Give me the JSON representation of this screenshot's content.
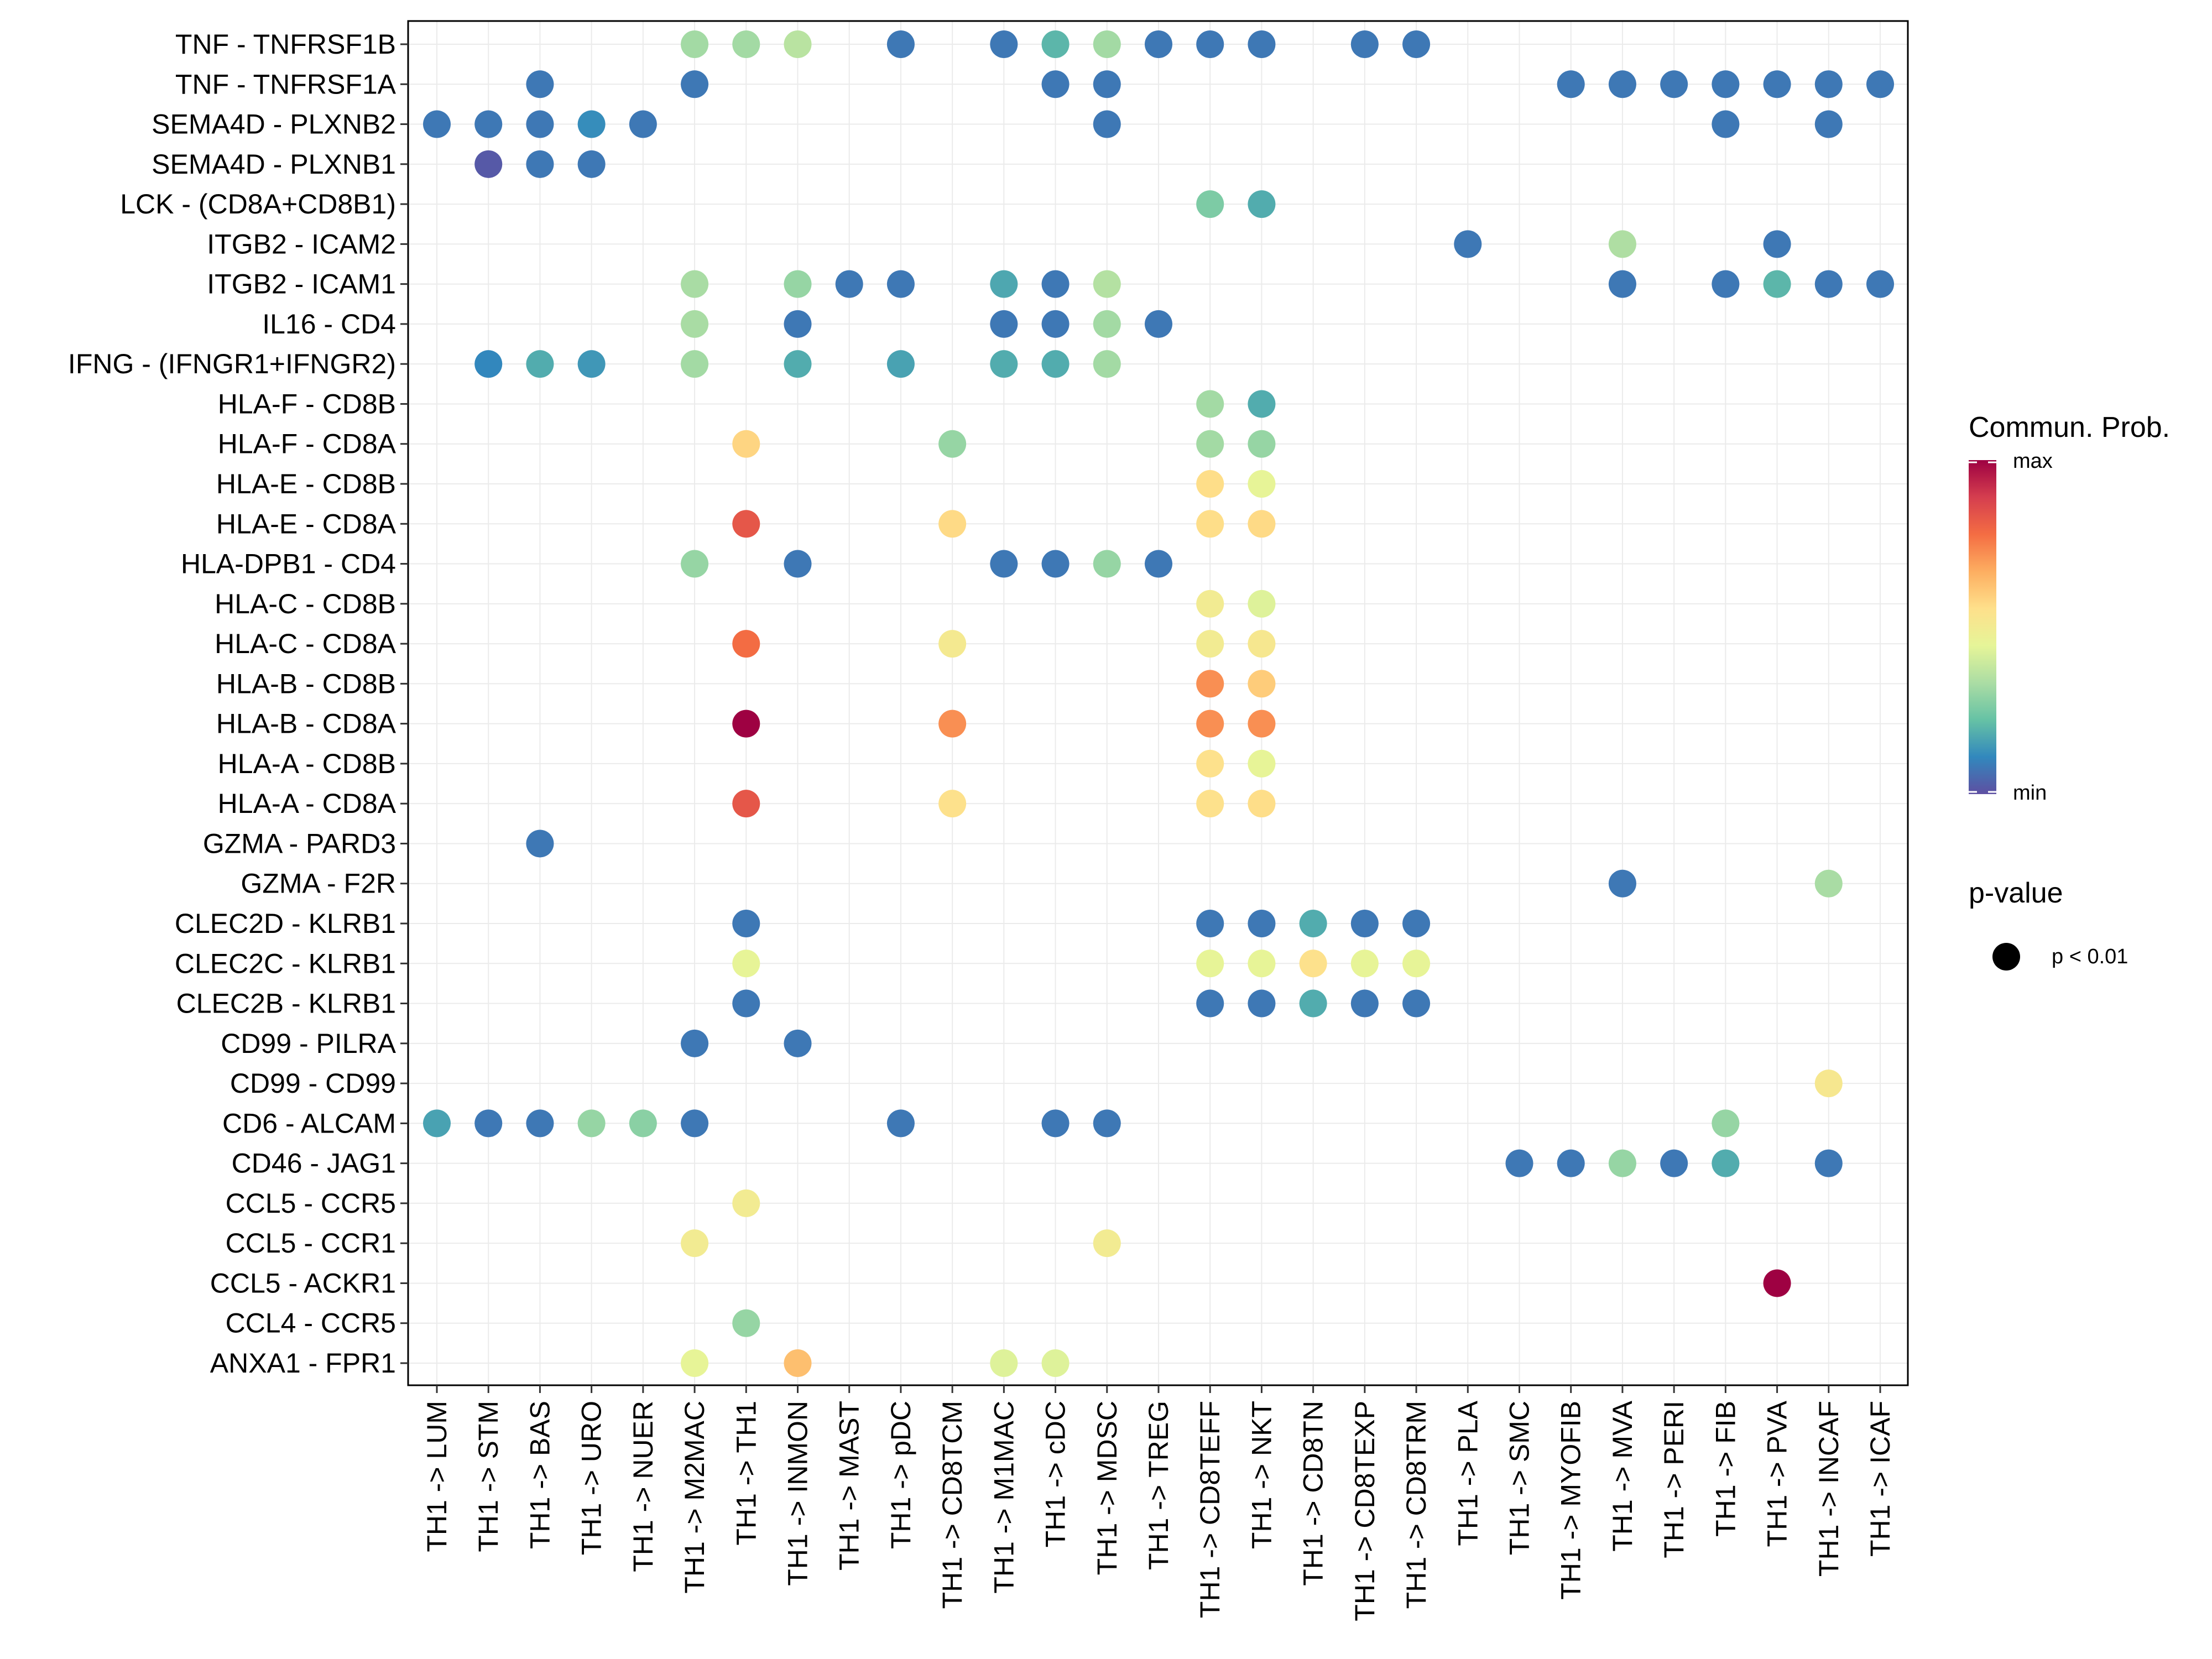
{
  "chart_data": {
    "type": "scatter",
    "title": "",
    "xlabel": "",
    "ylabel": "",
    "x_categories": [
      "TH1 -> LUM",
      "TH1 -> STM",
      "TH1 -> BAS",
      "TH1 -> URO",
      "TH1 -> NUER",
      "TH1 -> M2MAC",
      "TH1 -> TH1",
      "TH1 -> INMON",
      "TH1 -> MAST",
      "TH1 -> pDC",
      "TH1 -> CD8TCM",
      "TH1 -> M1MAC",
      "TH1 -> cDC",
      "TH1 -> MDSC",
      "TH1 -> TREG",
      "TH1 -> CD8TEFF",
      "TH1 -> NKT",
      "TH1 -> CD8TN",
      "TH1 -> CD8TEXP",
      "TH1 -> CD8TRM",
      "TH1 -> PLA",
      "TH1 -> SMC",
      "TH1 -> MYOFIB",
      "TH1 -> MVA",
      "TH1 -> PERI",
      "TH1 -> FIB",
      "TH1 -> PVA",
      "TH1 -> INCAF",
      "TH1 -> ICAF"
    ],
    "y_categories": [
      "TNF - TNFRSF1B",
      "TNF - TNFRSF1A",
      "SEMA4D - PLXNB2",
      "SEMA4D - PLXNB1",
      "LCK - (CD8A+CD8B1)",
      "ITGB2 - ICAM2",
      "ITGB2 - ICAM1",
      "IL16 - CD4",
      "IFNG - (IFNGR1+IFNGR2)",
      "HLA-F - CD8B",
      "HLA-F - CD8A",
      "HLA-E - CD8B",
      "HLA-E - CD8A",
      "HLA-DPB1 - CD4",
      "HLA-C - CD8B",
      "HLA-C - CD8A",
      "HLA-B - CD8B",
      "HLA-B - CD8A",
      "HLA-A - CD8B",
      "HLA-A - CD8A",
      "GZMA - PARD3",
      "GZMA - F2R",
      "CLEC2D - KLRB1",
      "CLEC2C - KLRB1",
      "CLEC2B - KLRB1",
      "CD99 - PILRA",
      "CD99 - CD99",
      "CD6 - ALCAM",
      "CD46 - JAG1",
      "CCL5 - CCR5",
      "CCL5 - CCR1",
      "CCL5 - ACKR1",
      "CCL4 - CCR5",
      "ANXA1 - FPR1"
    ],
    "value_scale": "normalized communication probability, 0 = min, 1 = max",
    "points": [
      [
        "TNF - TNFRSF1B",
        "TH1 -> M2MAC",
        0.32
      ],
      [
        "TNF - TNFRSF1B",
        "TH1 -> TH1",
        0.32
      ],
      [
        "TNF - TNFRSF1B",
        "TH1 -> INMON",
        0.36
      ],
      [
        "TNF - TNFRSF1B",
        "TH1 -> pDC",
        0.08
      ],
      [
        "TNF - TNFRSF1B",
        "TH1 -> M1MAC",
        0.08
      ],
      [
        "TNF - TNFRSF1B",
        "TH1 -> cDC",
        0.2
      ],
      [
        "TNF - TNFRSF1B",
        "TH1 -> MDSC",
        0.32
      ],
      [
        "TNF - TNFRSF1B",
        "TH1 -> TREG",
        0.08
      ],
      [
        "TNF - TNFRSF1B",
        "TH1 -> CD8TEFF",
        0.08
      ],
      [
        "TNF - TNFRSF1B",
        "TH1 -> NKT",
        0.08
      ],
      [
        "TNF - TNFRSF1B",
        "TH1 -> CD8TEXP",
        0.08
      ],
      [
        "TNF - TNFRSF1B",
        "TH1 -> CD8TRM",
        0.08
      ],
      [
        "TNF - TNFRSF1A",
        "TH1 -> BAS",
        0.08
      ],
      [
        "TNF - TNFRSF1A",
        "TH1 -> M2MAC",
        0.08
      ],
      [
        "TNF - TNFRSF1A",
        "TH1 -> cDC",
        0.08
      ],
      [
        "TNF - TNFRSF1A",
        "TH1 -> MDSC",
        0.08
      ],
      [
        "TNF - TNFRSF1A",
        "TH1 -> MYOFIB",
        0.08
      ],
      [
        "TNF - TNFRSF1A",
        "TH1 -> MVA",
        0.08
      ],
      [
        "TNF - TNFRSF1A",
        "TH1 -> PERI",
        0.08
      ],
      [
        "TNF - TNFRSF1A",
        "TH1 -> FIB",
        0.08
      ],
      [
        "TNF - TNFRSF1A",
        "TH1 -> PVA",
        0.08
      ],
      [
        "TNF - TNFRSF1A",
        "TH1 -> INCAF",
        0.08
      ],
      [
        "TNF - TNFRSF1A",
        "TH1 -> ICAF",
        0.08
      ],
      [
        "SEMA4D - PLXNB2",
        "TH1 -> LUM",
        0.08
      ],
      [
        "SEMA4D - PLXNB2",
        "TH1 -> STM",
        0.08
      ],
      [
        "SEMA4D - PLXNB2",
        "TH1 -> BAS",
        0.08
      ],
      [
        "SEMA4D - PLXNB2",
        "TH1 -> URO",
        0.12
      ],
      [
        "SEMA4D - PLXNB2",
        "TH1 -> NUER",
        0.08
      ],
      [
        "SEMA4D - PLXNB2",
        "TH1 -> MDSC",
        0.08
      ],
      [
        "SEMA4D - PLXNB2",
        "TH1 -> FIB",
        0.08
      ],
      [
        "SEMA4D - PLXNB2",
        "TH1 -> INCAF",
        0.08
      ],
      [
        "SEMA4D - PLXNB1",
        "TH1 -> STM",
        0.02
      ],
      [
        "SEMA4D - PLXNB1",
        "TH1 -> BAS",
        0.08
      ],
      [
        "SEMA4D - PLXNB1",
        "TH1 -> URO",
        0.08
      ],
      [
        "LCK - (CD8A+CD8B1)",
        "TH1 -> CD8TEFF",
        0.26
      ],
      [
        "LCK - (CD8A+CD8B1)",
        "TH1 -> NKT",
        0.18
      ],
      [
        "ITGB2 - ICAM2",
        "TH1 -> PLA",
        0.08
      ],
      [
        "ITGB2 - ICAM2",
        "TH1 -> MVA",
        0.34
      ],
      [
        "ITGB2 - ICAM2",
        "TH1 -> PVA",
        0.08
      ],
      [
        "ITGB2 - ICAM1",
        "TH1 -> M2MAC",
        0.33
      ],
      [
        "ITGB2 - ICAM1",
        "TH1 -> INMON",
        0.3
      ],
      [
        "ITGB2 - ICAM1",
        "TH1 -> MAST",
        0.08
      ],
      [
        "ITGB2 - ICAM1",
        "TH1 -> pDC",
        0.08
      ],
      [
        "ITGB2 - ICAM1",
        "TH1 -> M1MAC",
        0.17
      ],
      [
        "ITGB2 - ICAM1",
        "TH1 -> cDC",
        0.08
      ],
      [
        "ITGB2 - ICAM1",
        "TH1 -> MDSC",
        0.35
      ],
      [
        "ITGB2 - ICAM1",
        "TH1 -> MVA",
        0.08
      ],
      [
        "ITGB2 - ICAM1",
        "TH1 -> FIB",
        0.08
      ],
      [
        "ITGB2 - ICAM1",
        "TH1 -> PVA",
        0.2
      ],
      [
        "ITGB2 - ICAM1",
        "TH1 -> INCAF",
        0.08
      ],
      [
        "ITGB2 - ICAM1",
        "TH1 -> ICAF",
        0.08
      ],
      [
        "IL16 - CD4",
        "TH1 -> M2MAC",
        0.33
      ],
      [
        "IL16 - CD4",
        "TH1 -> INMON",
        0.08
      ],
      [
        "IL16 - CD4",
        "TH1 -> M1MAC",
        0.08
      ],
      [
        "IL16 - CD4",
        "TH1 -> cDC",
        0.08
      ],
      [
        "IL16 - CD4",
        "TH1 -> MDSC",
        0.32
      ],
      [
        "IL16 - CD4",
        "TH1 -> TREG",
        0.08
      ],
      [
        "IFNG - (IFNGR1+IFNGR2)",
        "TH1 -> STM",
        0.11
      ],
      [
        "IFNG - (IFNGR1+IFNGR2)",
        "TH1 -> BAS",
        0.18
      ],
      [
        "IFNG - (IFNGR1+IFNGR2)",
        "TH1 -> URO",
        0.14
      ],
      [
        "IFNG - (IFNGR1+IFNGR2)",
        "TH1 -> M2MAC",
        0.32
      ],
      [
        "IFNG - (IFNGR1+IFNGR2)",
        "TH1 -> INMON",
        0.18
      ],
      [
        "IFNG - (IFNGR1+IFNGR2)",
        "TH1 -> pDC",
        0.16
      ],
      [
        "IFNG - (IFNGR1+IFNGR2)",
        "TH1 -> M1MAC",
        0.18
      ],
      [
        "IFNG - (IFNGR1+IFNGR2)",
        "TH1 -> cDC",
        0.18
      ],
      [
        "IFNG - (IFNGR1+IFNGR2)",
        "TH1 -> MDSC",
        0.32
      ],
      [
        "HLA-F - CD8B",
        "TH1 -> CD8TEFF",
        0.32
      ],
      [
        "HLA-F - CD8B",
        "TH1 -> NKT",
        0.18
      ],
      [
        "HLA-F - CD8A",
        "TH1 -> TH1",
        0.58
      ],
      [
        "HLA-F - CD8A",
        "TH1 -> CD8TCM",
        0.3
      ],
      [
        "HLA-F - CD8A",
        "TH1 -> CD8TEFF",
        0.32
      ],
      [
        "HLA-F - CD8A",
        "TH1 -> NKT",
        0.3
      ],
      [
        "HLA-E - CD8B",
        "TH1 -> CD8TEFF",
        0.56
      ],
      [
        "HLA-E - CD8B",
        "TH1 -> NKT",
        0.45
      ],
      [
        "HLA-E - CD8A",
        "TH1 -> TH1",
        0.83
      ],
      [
        "HLA-E - CD8A",
        "TH1 -> CD8TCM",
        0.57
      ],
      [
        "HLA-E - CD8A",
        "TH1 -> CD8TEFF",
        0.56
      ],
      [
        "HLA-E - CD8A",
        "TH1 -> NKT",
        0.57
      ],
      [
        "HLA-DPB1 - CD4",
        "TH1 -> M2MAC",
        0.3
      ],
      [
        "HLA-DPB1 - CD4",
        "TH1 -> INMON",
        0.08
      ],
      [
        "HLA-DPB1 - CD4",
        "TH1 -> M1MAC",
        0.08
      ],
      [
        "HLA-DPB1 - CD4",
        "TH1 -> cDC",
        0.08
      ],
      [
        "HLA-DPB1 - CD4",
        "TH1 -> MDSC",
        0.3
      ],
      [
        "HLA-DPB1 - CD4",
        "TH1 -> TREG",
        0.08
      ],
      [
        "HLA-C - CD8B",
        "TH1 -> CD8TEFF",
        0.5
      ],
      [
        "HLA-C - CD8B",
        "TH1 -> NKT",
        0.43
      ],
      [
        "HLA-C - CD8A",
        "TH1 -> TH1",
        0.78
      ],
      [
        "HLA-C - CD8A",
        "TH1 -> CD8TCM",
        0.51
      ],
      [
        "HLA-C - CD8A",
        "TH1 -> CD8TEFF",
        0.5
      ],
      [
        "HLA-C - CD8A",
        "TH1 -> NKT",
        0.52
      ],
      [
        "HLA-B - CD8B",
        "TH1 -> CD8TEFF",
        0.72
      ],
      [
        "HLA-B - CD8B",
        "TH1 -> NKT",
        0.6
      ],
      [
        "HLA-B - CD8A",
        "TH1 -> TH1",
        1.0
      ],
      [
        "HLA-B - CD8A",
        "TH1 -> CD8TCM",
        0.72
      ],
      [
        "HLA-B - CD8A",
        "TH1 -> CD8TEFF",
        0.72
      ],
      [
        "HLA-B - CD8A",
        "TH1 -> NKT",
        0.72
      ],
      [
        "HLA-A - CD8B",
        "TH1 -> CD8TEFF",
        0.55
      ],
      [
        "HLA-A - CD8B",
        "TH1 -> NKT",
        0.45
      ],
      [
        "HLA-A - CD8A",
        "TH1 -> TH1",
        0.83
      ],
      [
        "HLA-A - CD8A",
        "TH1 -> CD8TCM",
        0.55
      ],
      [
        "HLA-A - CD8A",
        "TH1 -> CD8TEFF",
        0.55
      ],
      [
        "HLA-A - CD8A",
        "TH1 -> NKT",
        0.56
      ],
      [
        "GZMA - PARD3",
        "TH1 -> BAS",
        0.08
      ],
      [
        "GZMA - F2R",
        "TH1 -> MVA",
        0.08
      ],
      [
        "GZMA - F2R",
        "TH1 -> INCAF",
        0.33
      ],
      [
        "CLEC2D - KLRB1",
        "TH1 -> TH1",
        0.08
      ],
      [
        "CLEC2D - KLRB1",
        "TH1 -> CD8TEFF",
        0.08
      ],
      [
        "CLEC2D - KLRB1",
        "TH1 -> NKT",
        0.08
      ],
      [
        "CLEC2D - KLRB1",
        "TH1 -> CD8TN",
        0.18
      ],
      [
        "CLEC2D - KLRB1",
        "TH1 -> CD8TEXP",
        0.08
      ],
      [
        "CLEC2D - KLRB1",
        "TH1 -> CD8TRM",
        0.08
      ],
      [
        "CLEC2C - KLRB1",
        "TH1 -> TH1",
        0.45
      ],
      [
        "CLEC2C - KLRB1",
        "TH1 -> CD8TEFF",
        0.45
      ],
      [
        "CLEC2C - KLRB1",
        "TH1 -> NKT",
        0.45
      ],
      [
        "CLEC2C - KLRB1",
        "TH1 -> CD8TN",
        0.55
      ],
      [
        "CLEC2C - KLRB1",
        "TH1 -> CD8TEXP",
        0.45
      ],
      [
        "CLEC2C - KLRB1",
        "TH1 -> CD8TRM",
        0.45
      ],
      [
        "CLEC2B - KLRB1",
        "TH1 -> TH1",
        0.08
      ],
      [
        "CLEC2B - KLRB1",
        "TH1 -> CD8TEFF",
        0.08
      ],
      [
        "CLEC2B - KLRB1",
        "TH1 -> NKT",
        0.08
      ],
      [
        "CLEC2B - KLRB1",
        "TH1 -> CD8TN",
        0.18
      ],
      [
        "CLEC2B - KLRB1",
        "TH1 -> CD8TEXP",
        0.08
      ],
      [
        "CLEC2B - KLRB1",
        "TH1 -> CD8TRM",
        0.08
      ],
      [
        "CD99 - PILRA",
        "TH1 -> M2MAC",
        0.08
      ],
      [
        "CD99 - PILRA",
        "TH1 -> INMON",
        0.08
      ],
      [
        "CD99 - CD99",
        "TH1 -> INCAF",
        0.52
      ],
      [
        "CD6 - ALCAM",
        "TH1 -> LUM",
        0.16
      ],
      [
        "CD6 - ALCAM",
        "TH1 -> STM",
        0.08
      ],
      [
        "CD6 - ALCAM",
        "TH1 -> BAS",
        0.08
      ],
      [
        "CD6 - ALCAM",
        "TH1 -> URO",
        0.3
      ],
      [
        "CD6 - ALCAM",
        "TH1 -> NUER",
        0.28
      ],
      [
        "CD6 - ALCAM",
        "TH1 -> M2MAC",
        0.08
      ],
      [
        "CD6 - ALCAM",
        "TH1 -> pDC",
        0.08
      ],
      [
        "CD6 - ALCAM",
        "TH1 -> cDC",
        0.08
      ],
      [
        "CD6 - ALCAM",
        "TH1 -> MDSC",
        0.08
      ],
      [
        "CD6 - ALCAM",
        "TH1 -> FIB",
        0.3
      ],
      [
        "CD46 - JAG1",
        "TH1 -> SMC",
        0.08
      ],
      [
        "CD46 - JAG1",
        "TH1 -> MYOFIB",
        0.08
      ],
      [
        "CD46 - JAG1",
        "TH1 -> MVA",
        0.3
      ],
      [
        "CD46 - JAG1",
        "TH1 -> PERI",
        0.08
      ],
      [
        "CD46 - JAG1",
        "TH1 -> FIB",
        0.18
      ],
      [
        "CD46 - JAG1",
        "TH1 -> INCAF",
        0.08
      ],
      [
        "CCL5 - CCR5",
        "TH1 -> TH1",
        0.5
      ],
      [
        "CCL5 - CCR1",
        "TH1 -> M2MAC",
        0.5
      ],
      [
        "CCL5 - CCR1",
        "TH1 -> MDSC",
        0.5
      ],
      [
        "CCL5 - ACKR1",
        "TH1 -> PVA",
        1.0
      ],
      [
        "CCL4 - CCR5",
        "TH1 -> TH1",
        0.3
      ],
      [
        "ANXA1 - FPR1",
        "TH1 -> M2MAC",
        0.45
      ],
      [
        "ANXA1 - FPR1",
        "TH1 -> INMON",
        0.63
      ],
      [
        "ANXA1 - FPR1",
        "TH1 -> M1MAC",
        0.43
      ],
      [
        "ANXA1 - FPR1",
        "TH1 -> cDC",
        0.43
      ]
    ],
    "legend": {
      "color_title": "Commun. Prob.",
      "color_max_label": "max",
      "color_min_label": "min",
      "size_title": "p-value",
      "size_entry_label": "p < 0.01"
    },
    "palette": [
      "#5e4fa2",
      "#3288bd",
      "#66c2a5",
      "#abdda4",
      "#e6f598",
      "#fee08b",
      "#fdae61",
      "#f46d43",
      "#d53e4f",
      "#9e0142"
    ],
    "grid": true,
    "legend_position": "right"
  }
}
